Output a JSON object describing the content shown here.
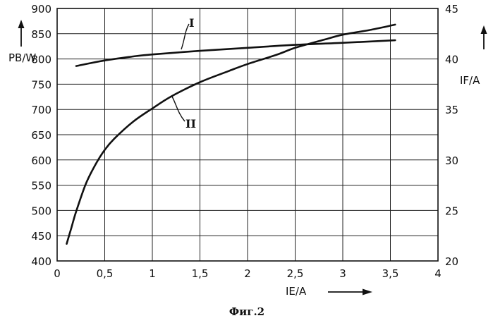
{
  "chart_data": {
    "type": "line",
    "caption": "Фиг.2",
    "xlabel": "IE/A",
    "ylabel_left": "PB/W",
    "ylabel_right": "IF/A",
    "xlim": [
      0,
      4
    ],
    "ylim_left": [
      400,
      900
    ],
    "ylim_right": [
      20,
      45
    ],
    "grid": true,
    "x_ticks": [
      {
        "value": 0,
        "label": "0"
      },
      {
        "value": 0.5,
        "label": "0,5"
      },
      {
        "value": 1,
        "label": "1"
      },
      {
        "value": 1.5,
        "label": "1,5"
      },
      {
        "value": 2,
        "label": "2"
      },
      {
        "value": 2.5,
        "label": "2,5"
      },
      {
        "value": 3,
        "label": "3"
      },
      {
        "value": 3.5,
        "label": "3,5"
      },
      {
        "value": 4,
        "label": "4"
      }
    ],
    "y_left_ticks": [
      {
        "value": 400,
        "label": "400"
      },
      {
        "value": 450,
        "label": "450"
      },
      {
        "value": 500,
        "label": "500"
      },
      {
        "value": 550,
        "label": "550"
      },
      {
        "value": 600,
        "label": "600"
      },
      {
        "value": 650,
        "label": "650"
      },
      {
        "value": 700,
        "label": "700"
      },
      {
        "value": 750,
        "label": "750"
      },
      {
        "value": 800,
        "label": "800"
      },
      {
        "value": 850,
        "label": "850"
      },
      {
        "value": 900,
        "label": "900"
      }
    ],
    "y_right_ticks": [
      {
        "value": 20,
        "label": "20"
      },
      {
        "value": 25,
        "label": "25"
      },
      {
        "value": 30,
        "label": "30"
      },
      {
        "value": 35,
        "label": "35"
      },
      {
        "value": 40,
        "label": "40"
      },
      {
        "value": 45,
        "label": "45"
      }
    ],
    "series": [
      {
        "name": "I",
        "axis": "left",
        "x": [
          0.2,
          0.5,
          0.8,
          1.0,
          1.5,
          2.0,
          2.5,
          3.0,
          3.55
        ],
        "values": [
          786,
          797,
          805,
          809,
          816,
          822,
          828,
          832,
          837
        ]
      },
      {
        "name": "II",
        "axis": "right",
        "x": [
          0.1,
          0.15,
          0.2,
          0.3,
          0.4,
          0.5,
          0.6,
          0.8,
          1.0,
          1.2,
          1.5,
          1.8,
          2.0,
          2.3,
          2.5,
          2.8,
          3.0,
          3.3,
          3.55
        ],
        "values": [
          21.7,
          23.3,
          24.9,
          27.6,
          29.5,
          31.0,
          32.1,
          33.8,
          35.1,
          36.3,
          37.7,
          38.8,
          39.5,
          40.4,
          41.1,
          41.9,
          42.4,
          42.9,
          43.4
        ]
      }
    ]
  }
}
